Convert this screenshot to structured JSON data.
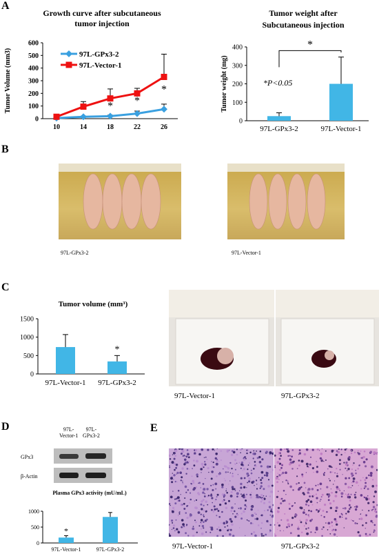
{
  "panels": {
    "a": "A",
    "b": "B",
    "c": "C",
    "d": "D",
    "e": "E"
  },
  "photo_captions": {
    "b_left": "97L-GPx3-2",
    "b_right": "97L-Vector-1",
    "c_left": "97L-Vector-1",
    "c_right": "97L-GPx3-2",
    "e_left": "97L-Vector-1",
    "e_right": "97L-GPx3-2"
  },
  "blot": {
    "lane1": [
      "97L-",
      "Vector-1"
    ],
    "lane2": [
      "97L-",
      "GPx3-2"
    ],
    "rows": [
      "GPx3",
      "β-Actin"
    ]
  },
  "chart_data": [
    {
      "type": "line",
      "title": "Growth curve after subcutaneous tumor injection",
      "ylabel": "Tumor Volume (mm3)",
      "x": [
        10,
        14,
        18,
        22,
        26
      ],
      "ylim": [
        0,
        600
      ],
      "yticks": [
        0,
        100,
        200,
        300,
        400,
        500,
        600
      ],
      "series": [
        {
          "name": "97L-GPx3-2",
          "values": [
            5,
            15,
            20,
            40,
            75
          ],
          "errors": [
            3,
            5,
            8,
            20,
            40
          ],
          "color": "#3aa0e0"
        },
        {
          "name": "97L-Vector-1",
          "values": [
            15,
            95,
            160,
            200,
            330
          ],
          "errors": [
            5,
            40,
            75,
            40,
            180
          ],
          "color": "#ee1111"
        }
      ],
      "annotations": [
        "*",
        "*",
        "*"
      ]
    },
    {
      "type": "bar",
      "title": "Tumor weight after Subcutaneous injection",
      "ylabel": "Tumor weight (mg)",
      "categories": [
        "97L-GPx3-2",
        "97L-Vector-1"
      ],
      "values": [
        25,
        200
      ],
      "errors": [
        18,
        145
      ],
      "ylim": [
        0,
        400
      ],
      "yticks": [
        0,
        100,
        200,
        300,
        400
      ],
      "color": "#41b6e6",
      "annotations": [
        "*",
        "*P<0.05"
      ]
    },
    {
      "type": "bar",
      "title": "Tumor volume (mm³)",
      "categories": [
        "97L-Vector-1",
        "97L-GPx3-2"
      ],
      "values": [
        730,
        340
      ],
      "errors": [
        340,
        160
      ],
      "ylim": [
        0,
        1500
      ],
      "yticks": [
        0,
        500,
        1000,
        1500
      ],
      "color": "#41b6e6",
      "annotations": [
        "*"
      ]
    },
    {
      "type": "bar",
      "title": "Plasma GPx3 activity (mU/mL)",
      "categories": [
        "97L-Vector-1",
        "97L-GPx3-2"
      ],
      "values": [
        170,
        820
      ],
      "errors": [
        60,
        140
      ],
      "ylim": [
        0,
        1000
      ],
      "yticks": [
        0,
        500,
        1000
      ],
      "color": "#41b6e6",
      "annotations": [
        "*"
      ]
    }
  ]
}
